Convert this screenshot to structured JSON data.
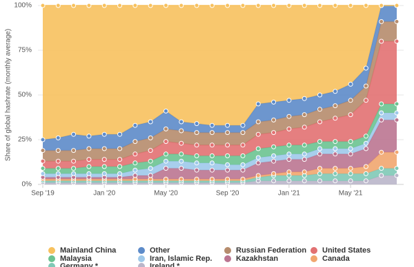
{
  "chart_data": {
    "type": "stacked-area",
    "y_label": "Share of global hashrate (monthly average)",
    "categories": [
      "Sep '19",
      null,
      null,
      null,
      "Jan '20",
      null,
      null,
      null,
      "May '20",
      null,
      null,
      null,
      "Sep '20",
      null,
      null,
      null,
      "Jan '21",
      null,
      null,
      null,
      "May '21",
      null,
      null,
      null
    ],
    "ylim": [
      0,
      100
    ],
    "yticks": [
      {
        "value": 0,
        "label": "0%"
      },
      {
        "value": 25,
        "label": "25%"
      },
      {
        "value": 50,
        "label": "50%"
      },
      {
        "value": 75,
        "label": "75%"
      },
      {
        "value": 100,
        "label": "100%"
      }
    ],
    "grid": true,
    "legend": "bottom",
    "series": [
      {
        "name": "Mainland China",
        "color": "#f7c15e",
        "values": [
          75,
          74,
          72,
          73,
          72,
          72,
          67,
          65,
          59,
          65,
          66,
          67,
          67,
          67,
          55,
          54,
          53,
          52,
          50,
          48,
          44,
          35,
          0,
          0
        ]
      },
      {
        "name": "Other",
        "color": "#5d8bc9",
        "values": [
          6,
          7,
          9,
          7,
          8,
          8,
          9,
          9,
          10,
          5,
          5,
          4,
          4,
          4,
          10,
          10,
          9,
          9,
          8,
          8,
          9,
          10,
          9,
          9
        ]
      },
      {
        "name": "Russian Federation",
        "color": "#b68c6d",
        "values": [
          6,
          6,
          6,
          6,
          6,
          6,
          7,
          7,
          7,
          7,
          7,
          7,
          7,
          7,
          7,
          7,
          7,
          7,
          7,
          7,
          8,
          8,
          11,
          11
        ]
      },
      {
        "name": "United States",
        "color": "#e27172",
        "values": [
          4,
          4,
          4,
          4,
          4,
          4,
          5,
          6,
          7,
          6,
          6,
          6,
          6,
          6,
          8,
          8,
          9,
          10,
          11,
          13,
          15,
          20,
          35,
          35
        ]
      },
      {
        "name": "Malaysia",
        "color": "#6cc391",
        "values": [
          3,
          3,
          3,
          4,
          4,
          4,
          4,
          4,
          4,
          4,
          4,
          4,
          5,
          5,
          5,
          5,
          5,
          5,
          4,
          4,
          4,
          4,
          5,
          5
        ]
      },
      {
        "name": "Iran, Islamic Rep.",
        "color": "#9fc9ea",
        "values": [
          2,
          2,
          2,
          2,
          2,
          2,
          3,
          4,
          4,
          4,
          4,
          4,
          3,
          3,
          3,
          3,
          3,
          3,
          3,
          3,
          3,
          3,
          4,
          4
        ]
      },
      {
        "name": "Kazakhstan",
        "color": "#bb7591",
        "values": [
          1,
          1,
          1,
          1,
          1,
          1,
          2,
          2,
          6,
          6,
          5,
          5,
          5,
          5,
          7,
          7,
          7,
          7,
          8,
          8,
          8,
          10,
          18,
          18
        ]
      },
      {
        "name": "Canada",
        "color": "#f1a66f",
        "values": [
          1,
          1,
          1,
          1,
          1,
          1,
          1,
          1,
          1,
          1,
          1,
          1,
          1,
          1,
          1,
          1,
          2,
          2,
          3,
          3,
          3,
          4,
          9,
          9
        ]
      },
      {
        "name": "Germany *",
        "color": "#80c9b6",
        "values": [
          1,
          1,
          1,
          1,
          1,
          1,
          1,
          1,
          1,
          1,
          1,
          1,
          1,
          1,
          2,
          3,
          3,
          3,
          4,
          4,
          4,
          4,
          4,
          4
        ]
      },
      {
        "name": "Ireland *",
        "color": "#bab6ca",
        "values": [
          1,
          1,
          1,
          1,
          1,
          1,
          1,
          1,
          1,
          1,
          1,
          1,
          1,
          1,
          2,
          2,
          2,
          2,
          2,
          2,
          2,
          2,
          5,
          5
        ]
      }
    ]
  }
}
